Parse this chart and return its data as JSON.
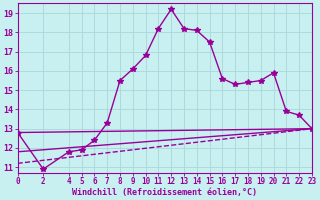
{
  "xlabel": "Windchill (Refroidissement éolien,°C)",
  "bg_color": "#c8f0f0",
  "grid_color": "#a8d8d8",
  "line_color": "#990099",
  "x_ticks": [
    0,
    2,
    4,
    5,
    6,
    7,
    8,
    9,
    10,
    11,
    12,
    13,
    14,
    15,
    16,
    17,
    18,
    19,
    20,
    21,
    22,
    23
  ],
  "y_ticks": [
    11,
    12,
    13,
    14,
    15,
    16,
    17,
    18,
    19
  ],
  "xlim": [
    0,
    23
  ],
  "ylim": [
    10.7,
    19.5
  ],
  "line1_x": [
    0,
    2,
    4,
    5,
    6,
    7,
    8,
    9,
    10,
    11,
    12,
    13,
    14,
    15,
    16,
    17,
    18,
    19,
    20,
    21,
    22,
    23
  ],
  "line1_y": [
    12.8,
    10.9,
    11.8,
    11.9,
    12.4,
    13.3,
    15.5,
    16.1,
    16.8,
    18.2,
    19.2,
    18.2,
    18.1,
    17.5,
    15.6,
    15.3,
    15.4,
    15.5,
    15.9,
    13.9,
    13.7,
    13.0
  ],
  "line2_x": [
    0,
    23
  ],
  "line2_y": [
    12.8,
    13.0
  ],
  "line3_x": [
    0,
    23
  ],
  "line3_y": [
    11.8,
    13.0
  ],
  "line4_x": [
    0,
    23
  ],
  "line4_y": [
    11.2,
    13.0
  ],
  "marker": "*",
  "marker_size": 4,
  "line_width": 1.0,
  "tick_fontsize": 5.5,
  "xlabel_fontsize": 6.0
}
